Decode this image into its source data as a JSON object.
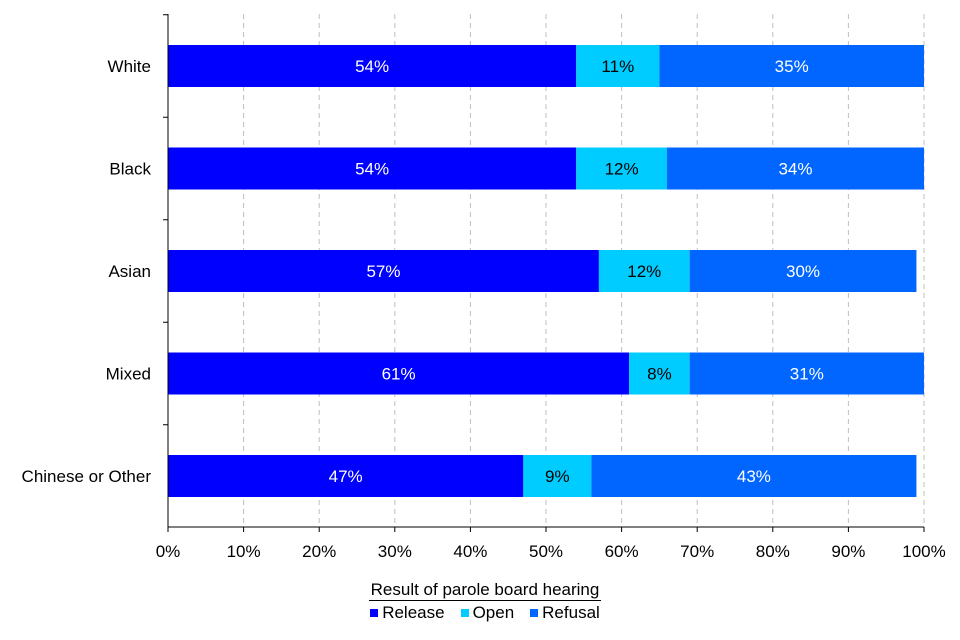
{
  "chart_data": {
    "type": "bar",
    "orientation": "horizontal",
    "stacked": true,
    "categories": [
      "White",
      "Black",
      "Asian",
      "Mixed",
      "Chinese or Other"
    ],
    "series": [
      {
        "name": "Release",
        "color": "#0000ff",
        "values": [
          54,
          54,
          57,
          61,
          47
        ],
        "labels": [
          "54%",
          "54%",
          "57%",
          "61%",
          "47%"
        ]
      },
      {
        "name": "Open",
        "color": "#00ccff",
        "values": [
          11,
          12,
          12,
          8,
          9
        ],
        "labels": [
          "11%",
          "12%",
          "12%",
          "8%",
          "9%"
        ]
      },
      {
        "name": "Refusal",
        "color": "#0066ff",
        "values": [
          35,
          34,
          30,
          31,
          43
        ],
        "labels": [
          "35%",
          "34%",
          "30%",
          "31%",
          "43%"
        ]
      }
    ],
    "xlim": [
      0,
      100
    ],
    "xticks": [
      "0%",
      "10%",
      "20%",
      "30%",
      "40%",
      "50%",
      "60%",
      "70%",
      "80%",
      "90%",
      "100%"
    ],
    "grid": "vertical dashed",
    "legend": {
      "title": "Result of parole board hearing",
      "position": "bottom-center"
    }
  }
}
